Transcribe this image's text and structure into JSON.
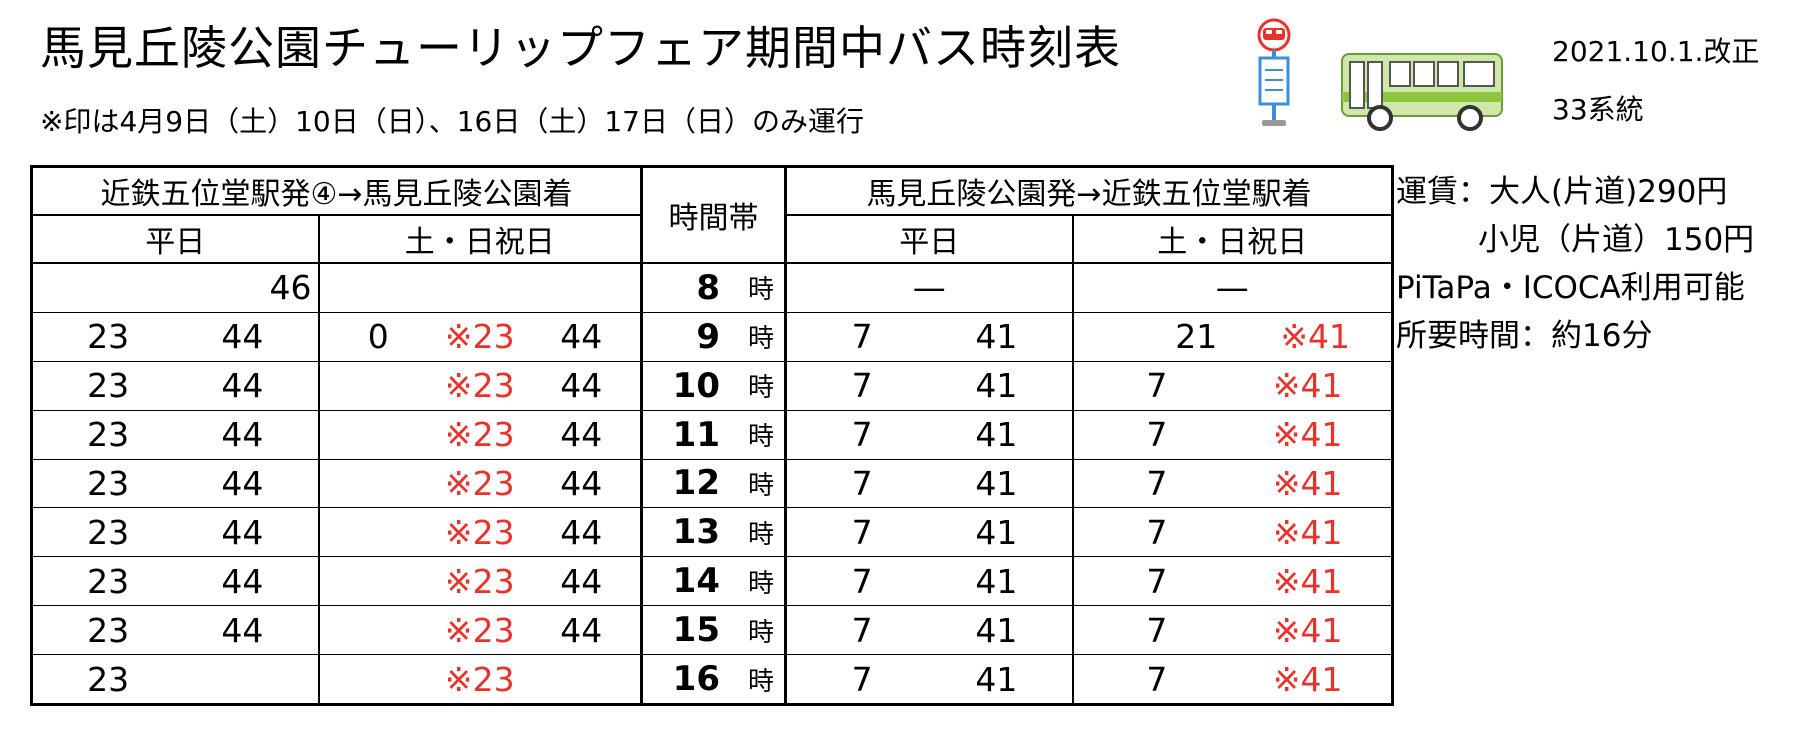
{
  "header": {
    "title": "馬見丘陵公園チューリップフェア期間中バス時刻表",
    "note": "※印は4月9日（土）10日（日）、16日（土）17日（日）のみ運行",
    "revision": "2021.10.1.改正",
    "route": "33系統"
  },
  "table": {
    "outbound_title": "近鉄五位堂駅発④→馬見丘陵公園着",
    "inbound_title": "馬見丘陵公園発→近鉄五位堂駅着",
    "hour_band_label": "時間帯",
    "weekday_label": "平日",
    "holiday_label": "土・日祝日",
    "hour_suffix": "時",
    "rows": [
      {
        "hour": "8",
        "out_weekday": [
          "46"
        ],
        "out_holiday": [],
        "in_weekday": [
          "—"
        ],
        "in_holiday": [
          "—"
        ]
      },
      {
        "hour": "9",
        "out_weekday": [
          "23",
          "44"
        ],
        "out_holiday": [
          "0",
          "※23",
          "44"
        ],
        "in_weekday": [
          "7",
          "41"
        ],
        "in_holiday": [
          "21",
          "※41"
        ]
      },
      {
        "hour": "10",
        "out_weekday": [
          "23",
          "44"
        ],
        "out_holiday": [
          "",
          "※23",
          "44"
        ],
        "in_weekday": [
          "7",
          "41"
        ],
        "in_holiday": [
          "7",
          "※41"
        ]
      },
      {
        "hour": "11",
        "out_weekday": [
          "23",
          "44"
        ],
        "out_holiday": [
          "",
          "※23",
          "44"
        ],
        "in_weekday": [
          "7",
          "41"
        ],
        "in_holiday": [
          "7",
          "※41"
        ]
      },
      {
        "hour": "12",
        "out_weekday": [
          "23",
          "44"
        ],
        "out_holiday": [
          "",
          "※23",
          "44"
        ],
        "in_weekday": [
          "7",
          "41"
        ],
        "in_holiday": [
          "7",
          "※41"
        ]
      },
      {
        "hour": "13",
        "out_weekday": [
          "23",
          "44"
        ],
        "out_holiday": [
          "",
          "※23",
          "44"
        ],
        "in_weekday": [
          "7",
          "41"
        ],
        "in_holiday": [
          "7",
          "※41"
        ]
      },
      {
        "hour": "14",
        "out_weekday": [
          "23",
          "44"
        ],
        "out_holiday": [
          "",
          "※23",
          "44"
        ],
        "in_weekday": [
          "7",
          "41"
        ],
        "in_holiday": [
          "7",
          "※41"
        ]
      },
      {
        "hour": "15",
        "out_weekday": [
          "23",
          "44"
        ],
        "out_holiday": [
          "",
          "※23",
          "44"
        ],
        "in_weekday": [
          "7",
          "41"
        ],
        "in_holiday": [
          "7",
          "※41"
        ]
      },
      {
        "hour": "16",
        "out_weekday": [
          "23",
          ""
        ],
        "out_holiday": [
          "",
          "※23",
          ""
        ],
        "in_weekday": [
          "7",
          "41"
        ],
        "in_holiday": [
          "7",
          "※41"
        ]
      }
    ]
  },
  "info": {
    "fare_adult": "運賃：大人(片道)290円",
    "fare_child": "小児（片道）150円",
    "ic_cards": "PiTaPa・ICOCA利用可能",
    "duration": "所要時間：約16分"
  },
  "icons": {
    "bus_stop": "bus-stop-icon",
    "bus": "bus-icon"
  },
  "colors": {
    "special_service": "#e8322a",
    "bus_body": "#cfe8a9",
    "bus_stripe": "#8cc63e",
    "stop_sign": "#e8322a",
    "stop_pole": "#3a8fd6"
  }
}
